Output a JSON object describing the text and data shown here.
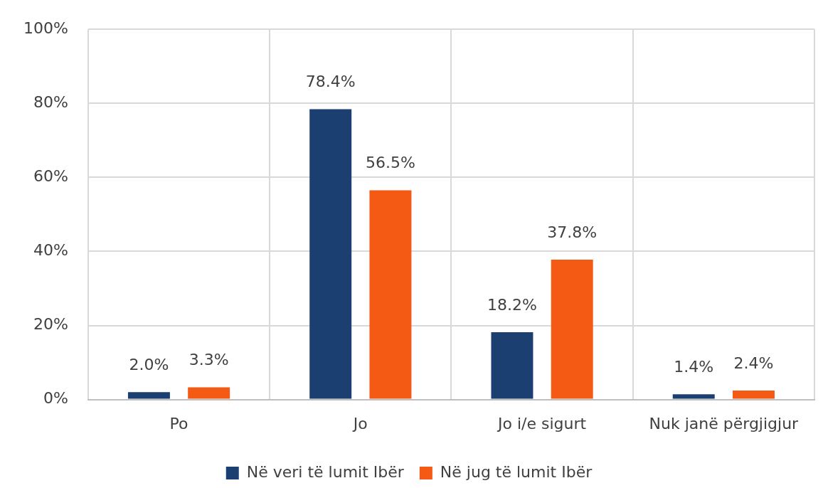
{
  "chart_data": {
    "type": "bar",
    "categories": [
      "Po",
      "Jo",
      "Jo i/e sigurt",
      "Nuk janë përgjigjur"
    ],
    "series": [
      {
        "name": "Në veri të lumit Ibër",
        "color": "#1b3f70",
        "values": [
          2.0,
          78.4,
          18.2,
          1.4
        ],
        "value_labels": [
          "2.0%",
          "78.4%",
          "18.2%",
          "1.4%"
        ]
      },
      {
        "name": "Në jug të lumit Ibër",
        "color": "#f55a14",
        "values": [
          3.3,
          56.5,
          37.8,
          2.4
        ],
        "value_labels": [
          "3.3%",
          "56.5%",
          "37.8%",
          "2.4%"
        ]
      }
    ],
    "ylim": [
      0,
      100
    ],
    "yticks": [
      {
        "value": 0,
        "label": "0%"
      },
      {
        "value": 20,
        "label": "20%"
      },
      {
        "value": 40,
        "label": "40%"
      },
      {
        "value": 60,
        "label": "60%"
      },
      {
        "value": 80,
        "label": "80%"
      },
      {
        "value": 100,
        "label": "100%"
      }
    ],
    "grid": true,
    "legend": "bottom"
  }
}
